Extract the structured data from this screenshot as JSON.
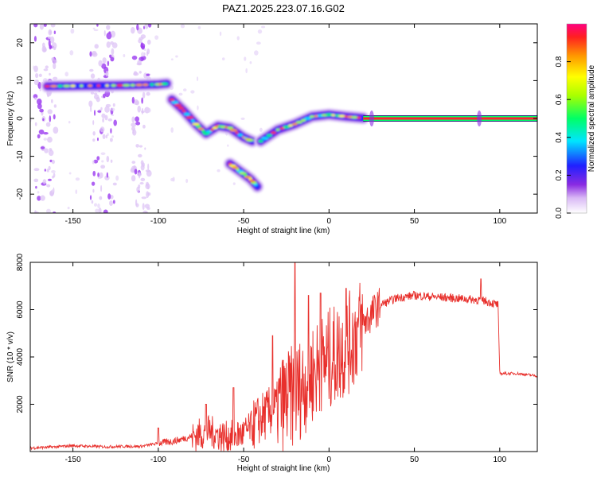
{
  "chart_data": [
    {
      "type": "heatmap",
      "title": "PAZ1.2025.223.07.16.G02",
      "xlabel": "Height of straight line (km)",
      "ylabel": "Frequency (Hz)",
      "xlim": [
        -175,
        122
      ],
      "ylim": [
        -25,
        25
      ],
      "x_ticks": [
        -150,
        -100,
        -50,
        0,
        50,
        100
      ],
      "y_ticks": [
        -20,
        -10,
        0,
        10,
        20
      ],
      "colorbar": {
        "label": "Normalized spectral amplitude",
        "range": [
          0,
          1
        ],
        "ticks": [
          0.0,
          0.2,
          0.4,
          0.6,
          0.8
        ]
      },
      "ridges": [
        {
          "segment": "upper",
          "points": [
            [
              -165,
              8.5
            ],
            [
              -150,
              8.6
            ],
            [
              -130,
              8.7
            ],
            [
              -115,
              8.8
            ],
            [
              -100,
              9.0
            ],
            [
              -95,
              9.2
            ]
          ]
        },
        {
          "segment": "descending",
          "points": [
            [
              -92,
              5
            ],
            [
              -85,
              2
            ],
            [
              -78,
              -1.5
            ],
            [
              -72,
              -4
            ],
            [
              -65,
              -2
            ],
            [
              -58,
              -2.5
            ],
            [
              -50,
              -5
            ],
            [
              -45,
              -6
            ]
          ]
        },
        {
          "segment": "lower-branch",
          "points": [
            [
              -58,
              -12
            ],
            [
              -52,
              -14
            ],
            [
              -46,
              -16
            ],
            [
              -42,
              -18
            ]
          ]
        },
        {
          "segment": "rising",
          "points": [
            [
              -40,
              -6
            ],
            [
              -30,
              -3
            ],
            [
              -20,
              -1.5
            ],
            [
              -10,
              0.5
            ],
            [
              0,
              1
            ],
            [
              10,
              0.5
            ],
            [
              20,
              0.1
            ]
          ]
        },
        {
          "segment": "stable",
          "points": [
            [
              20,
              0
            ],
            [
              60,
              0
            ],
            [
              100,
              0
            ],
            [
              122,
              0
            ]
          ]
        }
      ]
    },
    {
      "type": "line",
      "xlabel": "Height of straight line (km)",
      "ylabel": "SNR (10 * v/v)",
      "xlim": [
        -175,
        122
      ],
      "ylim": [
        0,
        8000
      ],
      "x_ticks": [
        -150,
        -100,
        -50,
        0,
        50,
        100
      ],
      "y_ticks": [
        2000,
        4000,
        6000,
        8000
      ],
      "color": "#e8302c",
      "envelope": [
        [
          -175,
          150
        ],
        [
          -160,
          200
        ],
        [
          -150,
          250
        ],
        [
          -140,
          220
        ],
        [
          -130,
          200
        ],
        [
          -120,
          220
        ],
        [
          -110,
          220
        ],
        [
          -100,
          350
        ],
        [
          -90,
          450
        ],
        [
          -80,
          650
        ],
        [
          -70,
          850
        ],
        [
          -60,
          600
        ],
        [
          -50,
          750
        ],
        [
          -40,
          1400
        ],
        [
          -30,
          1900
        ],
        [
          -20,
          2400
        ],
        [
          -10,
          3300
        ],
        [
          0,
          3900
        ],
        [
          10,
          4400
        ],
        [
          20,
          5400
        ],
        [
          30,
          6200
        ],
        [
          40,
          6500
        ],
        [
          50,
          6600
        ],
        [
          60,
          6550
        ],
        [
          70,
          6500
        ],
        [
          80,
          6450
        ],
        [
          90,
          6400
        ],
        [
          99,
          6200
        ],
        [
          100,
          3300
        ],
        [
          110,
          3300
        ],
        [
          122,
          3200
        ]
      ],
      "peaks": [
        [
          -100,
          1000
        ],
        [
          -72,
          2000
        ],
        [
          -56,
          2700
        ],
        [
          -33,
          4900
        ],
        [
          -20,
          8000
        ],
        [
          -12,
          6600
        ],
        [
          -5,
          6700
        ],
        [
          10,
          6900
        ],
        [
          89,
          7300
        ]
      ]
    }
  ]
}
